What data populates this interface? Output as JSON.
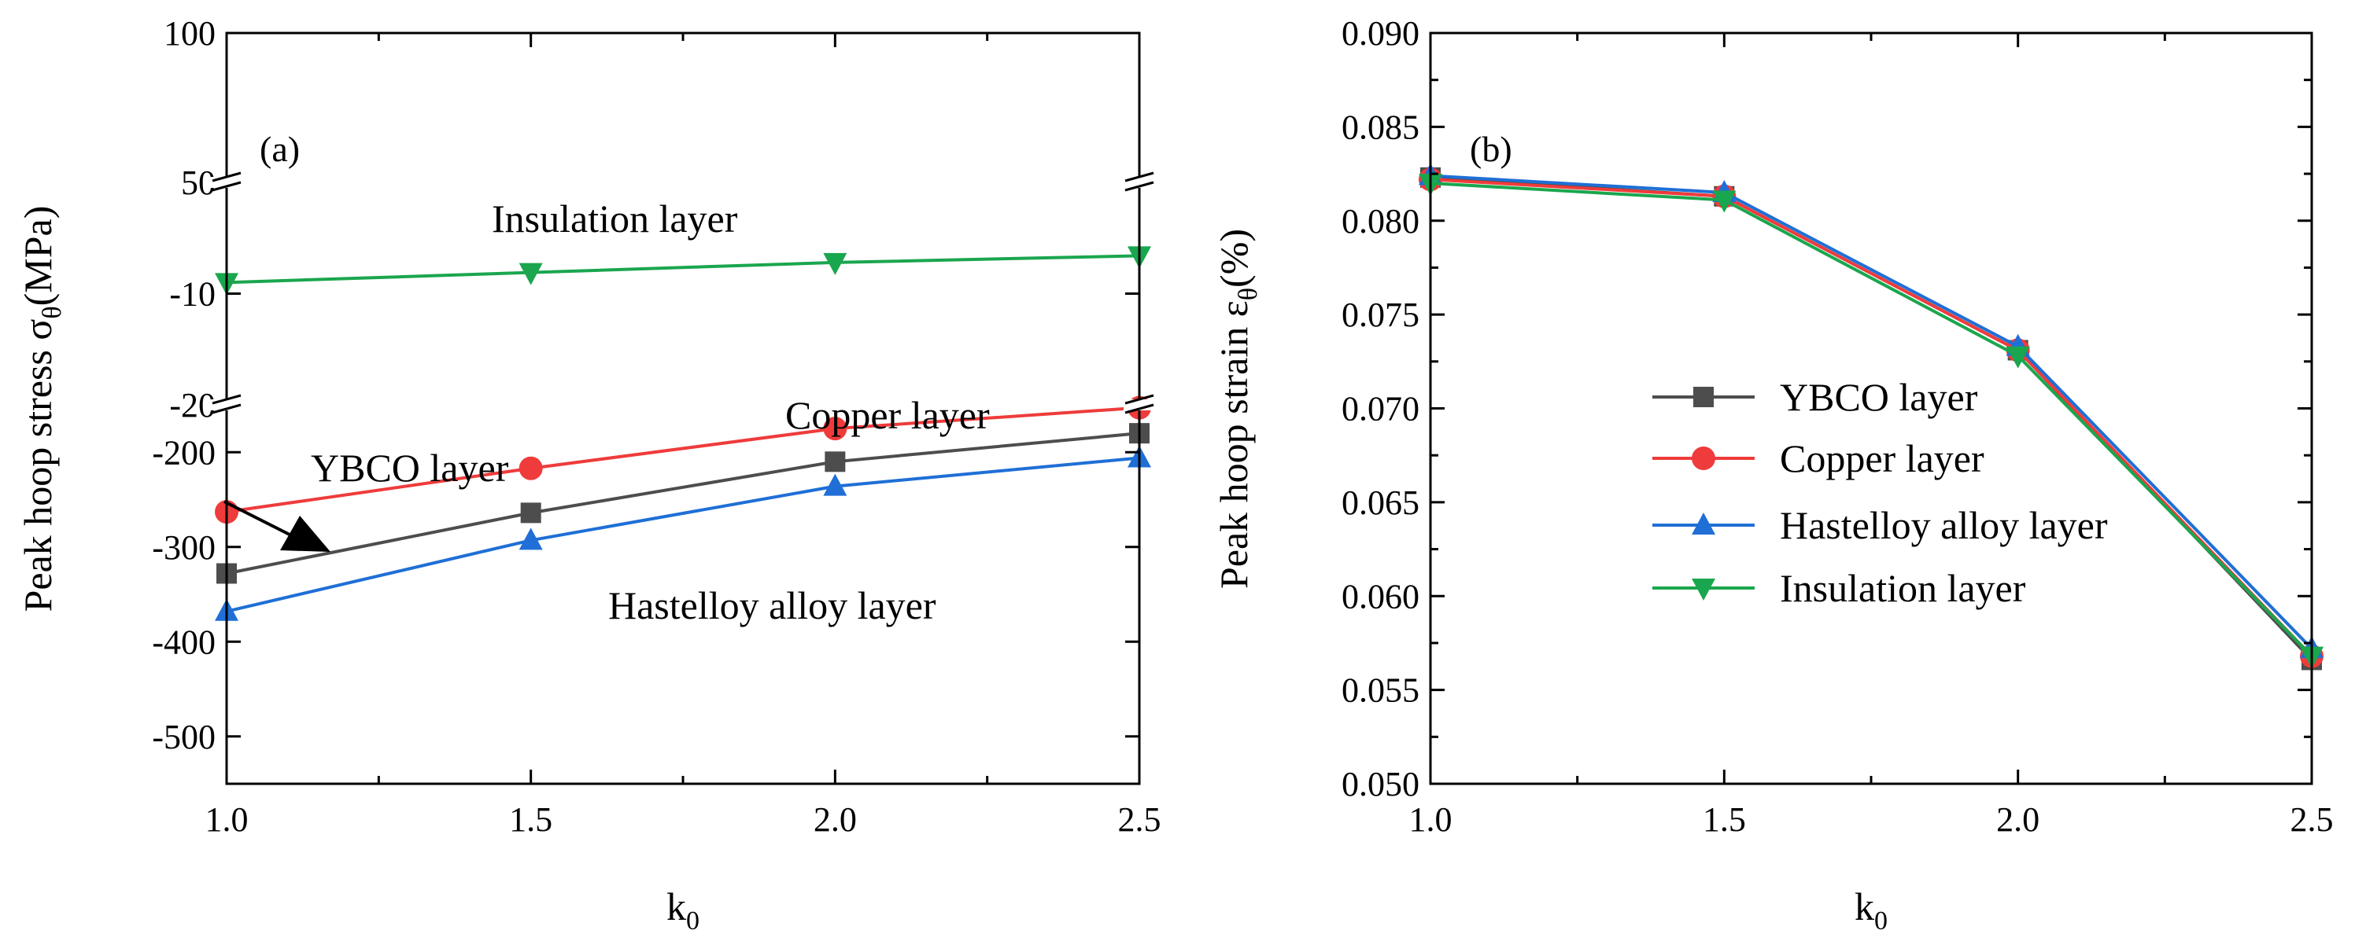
{
  "chart_data": [
    {
      "type": "line",
      "panel_label": "(a)",
      "xlabel": {
        "main": "k",
        "sub": "0"
      },
      "ylabel": {
        "main": "Peak hoop stress σ",
        "sub": "θ",
        "unit": "(MPa)"
      },
      "x_ticks": [
        "1.0",
        "1.5",
        "2.0",
        "2.5"
      ],
      "xlim": [
        1.0,
        2.5
      ],
      "segments": [
        {
          "name": "upper",
          "range": [
            50,
            100
          ],
          "ticks": [
            {
              "v": 100,
              "label": "100"
            },
            {
              "v": 50,
              "label": "50"
            }
          ]
        },
        {
          "name": "middle",
          "range": [
            -20,
            0
          ],
          "ticks": [
            {
              "v": -10,
              "label": "-10"
            },
            {
              "v": -20,
              "label": "-20"
            }
          ]
        },
        {
          "name": "lower",
          "range": [
            -550,
            -150
          ],
          "ticks": [
            {
              "v": -200,
              "label": "-200"
            },
            {
              "v": -300,
              "label": "-300"
            },
            {
              "v": -400,
              "label": "-400"
            },
            {
              "v": -500,
              "label": "-500"
            }
          ]
        }
      ],
      "x_minor_ticks": [
        1.25,
        1.75,
        2.25
      ],
      "series": [
        {
          "name": "Insulation layer",
          "marker": "triangle-down",
          "color": "#1aa64e",
          "x": [
            1.0,
            1.5,
            2.0,
            2.5
          ],
          "y": [
            -9.0,
            -8.1,
            -7.2,
            -6.6
          ]
        },
        {
          "name": "Copper layer",
          "marker": "circle",
          "color": "#ef3b3b",
          "x": [
            1.0,
            1.5,
            2.0,
            2.5
          ],
          "y": [
            -263,
            -217,
            -175,
            -153
          ]
        },
        {
          "name": "YBCO layer",
          "marker": "square",
          "color": "#4d4d4d",
          "x": [
            1.0,
            1.5,
            2.0,
            2.5
          ],
          "y": [
            -328,
            -264,
            -210,
            -180
          ]
        },
        {
          "name": "Hastelloy alloy layer",
          "marker": "triangle-up",
          "color": "#1f6fd6",
          "x": [
            1.0,
            1.5,
            2.0,
            2.5
          ],
          "y": [
            -368,
            -293,
            -236,
            -206
          ]
        }
      ],
      "annotations": [
        "Insulation layer",
        "Copper layer",
        "YBCO layer",
        "Hastelloy alloy layer"
      ]
    },
    {
      "type": "line",
      "panel_label": "(b)",
      "xlabel": {
        "main": "k",
        "sub": "0"
      },
      "ylabel": {
        "main": "Peak hoop strain ε",
        "sub": "θ",
        "unit": "(%)"
      },
      "x_ticks": [
        "1.0",
        "1.5",
        "2.0",
        "2.5"
      ],
      "xlim": [
        1.0,
        2.5
      ],
      "ylim": [
        0.05,
        0.09
      ],
      "y_ticks": [
        "0.050",
        "0.055",
        "0.060",
        "0.065",
        "0.070",
        "0.075",
        "0.080",
        "0.085",
        "0.090"
      ],
      "x_minor_ticks": [
        1.25,
        1.75,
        2.25
      ],
      "legend_position": "center",
      "series": [
        {
          "name": "YBCO layer",
          "marker": "square",
          "color": "#4d4d4d",
          "x": [
            1.0,
            1.5,
            2.0,
            2.5
          ],
          "y": [
            0.0823,
            0.0813,
            0.0731,
            0.0566
          ]
        },
        {
          "name": "Copper layer",
          "marker": "circle",
          "color": "#ef3b3b",
          "x": [
            1.0,
            1.5,
            2.0,
            2.5
          ],
          "y": [
            0.0822,
            0.0813,
            0.0731,
            0.0568
          ]
        },
        {
          "name": "Hastelloy alloy layer",
          "marker": "triangle-up",
          "color": "#1f6fd6",
          "x": [
            1.0,
            1.5,
            2.0,
            2.5
          ],
          "y": [
            0.0824,
            0.0815,
            0.0733,
            0.0572
          ]
        },
        {
          "name": "Insulation layer",
          "marker": "triangle-down",
          "color": "#1aa64e",
          "x": [
            1.0,
            1.5,
            2.0,
            2.5
          ],
          "y": [
            0.082,
            0.0811,
            0.0728,
            0.0568
          ]
        }
      ]
    }
  ]
}
